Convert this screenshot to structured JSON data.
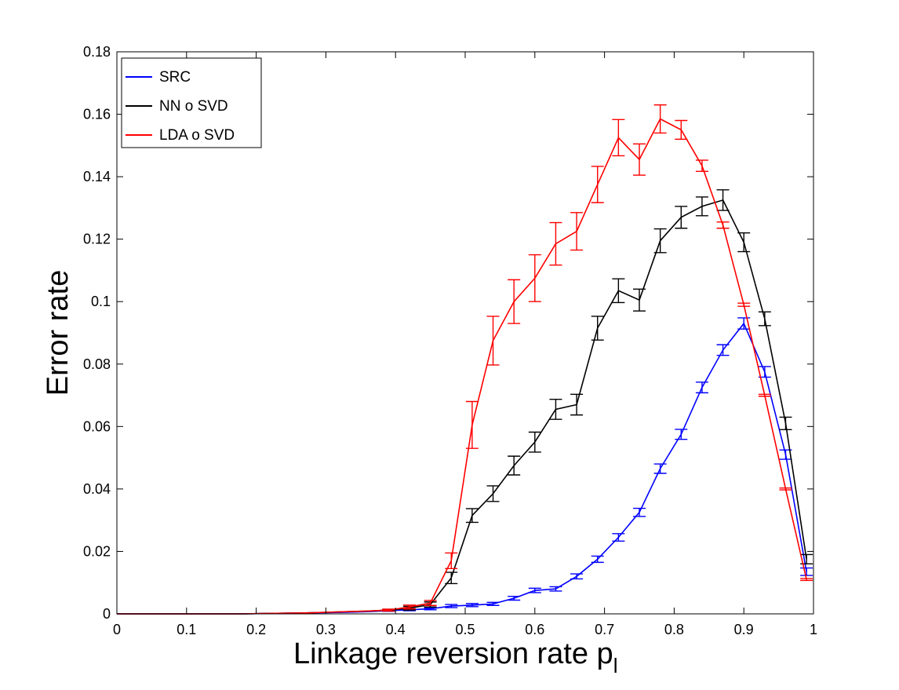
{
  "chart_data": {
    "type": "line",
    "title": "",
    "xlabel": "Linkage reversion rate p",
    "xlabel_subscript": "l",
    "ylabel": "Error rate",
    "xlim": [
      0,
      1
    ],
    "ylim": [
      0,
      0.18
    ],
    "xticks": [
      "0",
      "0.1",
      "0.2",
      "0.3",
      "0.4",
      "0.5",
      "0.6",
      "0.7",
      "0.8",
      "0.9",
      "1"
    ],
    "yticks": [
      "0",
      "0.02",
      "0.04",
      "0.06",
      "0.08",
      "0.1",
      "0.12",
      "0.14",
      "0.16",
      "0.18"
    ],
    "grid": false,
    "legend_position": "top-left",
    "x": [
      0,
      0.03,
      0.06,
      0.09,
      0.12,
      0.15,
      0.18,
      0.21,
      0.24,
      0.27,
      0.3,
      0.33,
      0.36,
      0.39,
      0.42,
      0.45,
      0.48,
      0.51,
      0.54,
      0.57,
      0.6,
      0.63,
      0.66,
      0.69,
      0.72,
      0.75,
      0.78,
      0.81,
      0.84,
      0.87,
      0.9,
      0.93,
      0.96,
      0.99
    ],
    "series": [
      {
        "name": "SRC",
        "color": "#0000ff",
        "values": [
          0,
          0,
          0,
          0,
          0,
          0,
          0,
          0.0001,
          0.0002,
          0.0003,
          0.0004,
          0.0005,
          0.0007,
          0.001,
          0.0013,
          0.0016,
          0.0025,
          0.0028,
          0.0032,
          0.005,
          0.0075,
          0.008,
          0.012,
          0.0175,
          0.0245,
          0.0325,
          0.0465,
          0.0575,
          0.0725,
          0.0845,
          0.093,
          0.0775,
          0.051,
          0.0135
        ],
        "errors": [
          0,
          0,
          0,
          0,
          0,
          0,
          0,
          0,
          0,
          0,
          0,
          0,
          0,
          0.0002,
          0.0003,
          0.0003,
          0.0005,
          0.0005,
          0.0005,
          0.0006,
          0.0007,
          0.0007,
          0.0008,
          0.001,
          0.0012,
          0.0013,
          0.0015,
          0.0016,
          0.0017,
          0.0017,
          0.0018,
          0.0017,
          0.0015,
          0.0012
        ]
      },
      {
        "name": "NN o SVD",
        "color": "#000000",
        "values": [
          0,
          0,
          0,
          0,
          0,
          0,
          0,
          0.0001,
          0.0002,
          0.0003,
          0.0005,
          0.0007,
          0.0009,
          0.0012,
          0.0018,
          0.003,
          0.0115,
          0.0315,
          0.0385,
          0.0475,
          0.055,
          0.0655,
          0.067,
          0.0915,
          0.1035,
          0.1005,
          0.1195,
          0.127,
          0.1305,
          0.1325,
          0.119,
          0.0945,
          0.061,
          0.0175
        ],
        "errors": [
          0,
          0,
          0,
          0,
          0,
          0,
          0,
          0,
          0,
          0,
          0,
          0,
          0,
          0.0003,
          0.0006,
          0.0008,
          0.0018,
          0.0022,
          0.0025,
          0.003,
          0.0032,
          0.0032,
          0.0033,
          0.0038,
          0.0038,
          0.0035,
          0.0038,
          0.0035,
          0.003,
          0.0033,
          0.003,
          0.0022,
          0.002,
          0.0015
        ]
      },
      {
        "name": "LDA o SVD",
        "color": "#ff0000",
        "values": [
          0,
          0,
          0,
          0,
          0,
          0,
          0,
          0.0001,
          0.0002,
          0.0003,
          0.0005,
          0.0007,
          0.0009,
          0.0012,
          0.0022,
          0.0035,
          0.017,
          0.0605,
          0.0875,
          0.1,
          0.1075,
          0.1185,
          0.1225,
          0.1375,
          0.1525,
          0.1455,
          0.1585,
          0.155,
          0.1435,
          0.1245,
          0.099,
          0.07,
          0.04,
          0.011
        ],
        "errors": [
          0,
          0,
          0,
          0,
          0,
          0,
          0,
          0,
          0,
          0,
          0,
          0,
          0,
          0.0003,
          0.0006,
          0.0008,
          0.0025,
          0.0075,
          0.0078,
          0.007,
          0.0075,
          0.0068,
          0.006,
          0.0058,
          0.0058,
          0.005,
          0.0045,
          0.003,
          0.0018,
          0.001,
          0.0005,
          0.0003,
          0.0003,
          0.0003
        ]
      }
    ]
  }
}
